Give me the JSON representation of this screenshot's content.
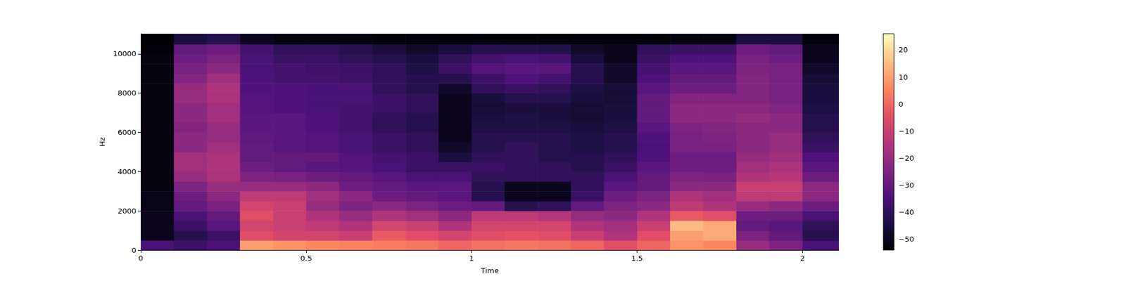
{
  "chart_data": {
    "type": "heatmap",
    "x_label": "Time",
    "y_label": "Hz",
    "xlim": [
      0,
      2.11
    ],
    "ylim": [
      0,
      11025
    ],
    "xticks": [
      0,
      0.5,
      1,
      1.5,
      2
    ],
    "yticks": [
      0,
      2000,
      4000,
      6000,
      8000,
      10000
    ],
    "grid": false,
    "x_bins": [
      0,
      0.1,
      0.2,
      0.3,
      0.4,
      0.5,
      0.6,
      0.7,
      0.8,
      0.9,
      1.0,
      1.1,
      1.2,
      1.3,
      1.4,
      1.5,
      1.6,
      1.7,
      1.8,
      1.9,
      2.0,
      2.11
    ],
    "y_bins": [
      0,
      500,
      1000,
      1500,
      2000,
      2500,
      3000,
      3500,
      4000,
      4500,
      5000,
      5500,
      6000,
      6500,
      7000,
      7500,
      8000,
      8500,
      9000,
      9500,
      10000,
      10500,
      11025
    ],
    "cells": [
      [
        -35,
        -50,
        -50,
        -50,
        -51,
        -51,
        -52,
        -52,
        -52,
        -52,
        -52,
        -52,
        -52,
        -52,
        -52,
        -52,
        -52,
        -52,
        -52,
        -52,
        -53,
        -54
      ],
      [
        -38,
        -42,
        -38,
        -35,
        -30,
        -28,
        -25,
        -20,
        -18,
        -18,
        -22,
        -22,
        -24,
        -22,
        -22,
        -20,
        -20,
        -24,
        -26,
        -28,
        -30,
        -45
      ],
      [
        -35,
        -38,
        -32,
        -30,
        -26,
        -22,
        -20,
        -16,
        -15,
        -16,
        -18,
        -20,
        -20,
        -18,
        -18,
        -16,
        -15,
        -18,
        -22,
        -25,
        -28,
        -42
      ],
      [
        10,
        -5,
        -8,
        -5,
        -8,
        -12,
        -20,
        -25,
        -28,
        -30,
        -30,
        -31,
        -32,
        -32,
        -33,
        -33,
        -34,
        -34,
        -35,
        -35,
        -36,
        -50
      ],
      [
        8,
        -8,
        -10,
        -10,
        -10,
        -12,
        -20,
        -26,
        -30,
        -30,
        -32,
        -32,
        -32,
        -32,
        -34,
        -34,
        -34,
        -36,
        -36,
        -38,
        -40,
        -52
      ],
      [
        6,
        -8,
        -12,
        -15,
        -20,
        -18,
        -22,
        -28,
        -32,
        -30,
        -33,
        -33,
        -34,
        -34,
        -35,
        -35,
        -35,
        -36,
        -37,
        -38,
        -40,
        -52
      ],
      [
        5,
        -10,
        -15,
        -20,
        -25,
        -22,
        -28,
        -30,
        -33,
        -33,
        -35,
        -35,
        -36,
        -36,
        -36,
        -35,
        -35,
        -37,
        -38,
        -40,
        -42,
        -52
      ],
      [
        4,
        -2,
        -8,
        -15,
        -22,
        -28,
        -30,
        -32,
        -35,
        -36,
        -38,
        -38,
        -40,
        -40,
        -38,
        -38,
        -40,
        -40,
        -40,
        -42,
        -45,
        -53
      ],
      [
        3,
        -5,
        -10,
        -18,
        -25,
        -30,
        -32,
        -35,
        -38,
        -38,
        -40,
        -40,
        -42,
        -42,
        -40,
        -40,
        -42,
        -42,
        -44,
        -45,
        -48,
        -53
      ],
      [
        0,
        -8,
        -15,
        -22,
        -28,
        -32,
        -32,
        -35,
        -38,
        -45,
        -48,
        -50,
        -50,
        -50,
        -50,
        -50,
        -48,
        -42,
        -38,
        -40,
        -45,
        -53
      ],
      [
        2,
        -5,
        -8,
        -12,
        -30,
        -42,
        -42,
        -40,
        -38,
        -40,
        -42,
        -42,
        -44,
        -45,
        -46,
        -45,
        -40,
        -38,
        -33,
        -36,
        -42,
        -53
      ],
      [
        3,
        -4,
        -8,
        -12,
        -42,
        -50,
        -50,
        -40,
        -40,
        -40,
        -40,
        -42,
        -44,
        -44,
        -45,
        -42,
        -38,
        -34,
        -32,
        -35,
        -42,
        -53
      ],
      [
        2,
        -5,
        -8,
        -14,
        -40,
        -50,
        -50,
        -40,
        -40,
        -42,
        -42,
        -42,
        -44,
        -45,
        -45,
        -42,
        -40,
        -36,
        -32,
        -36,
        -43,
        -53
      ],
      [
        0,
        -10,
        -15,
        -20,
        -30,
        -38,
        -40,
        -40,
        -42,
        -42,
        -44,
        -44,
        -45,
        -46,
        -46,
        -45,
        -44,
        -42,
        -42,
        -45,
        -48,
        -53
      ],
      [
        -5,
        -15,
        -18,
        -22,
        -25,
        -28,
        -32,
        -35,
        -38,
        -40,
        -42,
        -42,
        -44,
        -45,
        -45,
        -46,
        -46,
        -48,
        -48,
        -50,
        -50,
        -53
      ],
      [
        0,
        -5,
        -10,
        -15,
        -22,
        -25,
        -30,
        -30,
        -32,
        -34,
        -35,
        -34,
        -32,
        -30,
        -30,
        -30,
        -32,
        -34,
        -36,
        -38,
        -40,
        -53
      ],
      [
        8,
        10,
        15,
        -2,
        -12,
        -15,
        -22,
        -25,
        -28,
        -28,
        -26,
        -26,
        -25,
        -22,
        -22,
        -24,
        -28,
        -30,
        -32,
        -34,
        -38,
        -52
      ],
      [
        6,
        12,
        12,
        -5,
        -15,
        -18,
        -22,
        -26,
        -28,
        -28,
        -26,
        -25,
        -24,
        -22,
        -22,
        -24,
        -28,
        -30,
        -32,
        -34,
        -38,
        -52
      ],
      [
        -20,
        -25,
        -30,
        -28,
        -20,
        -12,
        -10,
        -15,
        -18,
        -20,
        -22,
        -22,
        -22,
        -20,
        -22,
        -24,
        -24,
        -24,
        -25,
        -26,
        -28,
        -45
      ],
      [
        -25,
        -30,
        -32,
        -28,
        -22,
        -12,
        -10,
        -14,
        -16,
        -18,
        -20,
        -20,
        -22,
        -22,
        -24,
        -26,
        -26,
        -26,
        -26,
        -28,
        -30,
        -45
      ],
      [
        -35,
        -42,
        -40,
        -35,
        -28,
        -22,
        -22,
        -28,
        -32,
        -34,
        -38,
        -40,
        -42,
        -42,
        -44,
        -45,
        -45,
        -46,
        -48,
        -50,
        -50,
        -53
      ]
    ],
    "colorbar": {
      "range": [
        -54,
        26
      ],
      "ticks": [
        {
          "value": -50,
          "label": "−50"
        },
        {
          "value": -40,
          "label": "−40"
        },
        {
          "value": -30,
          "label": "−30"
        },
        {
          "value": -20,
          "label": "−20"
        },
        {
          "value": -10,
          "label": "−10"
        },
        0,
        10,
        20
      ]
    }
  }
}
